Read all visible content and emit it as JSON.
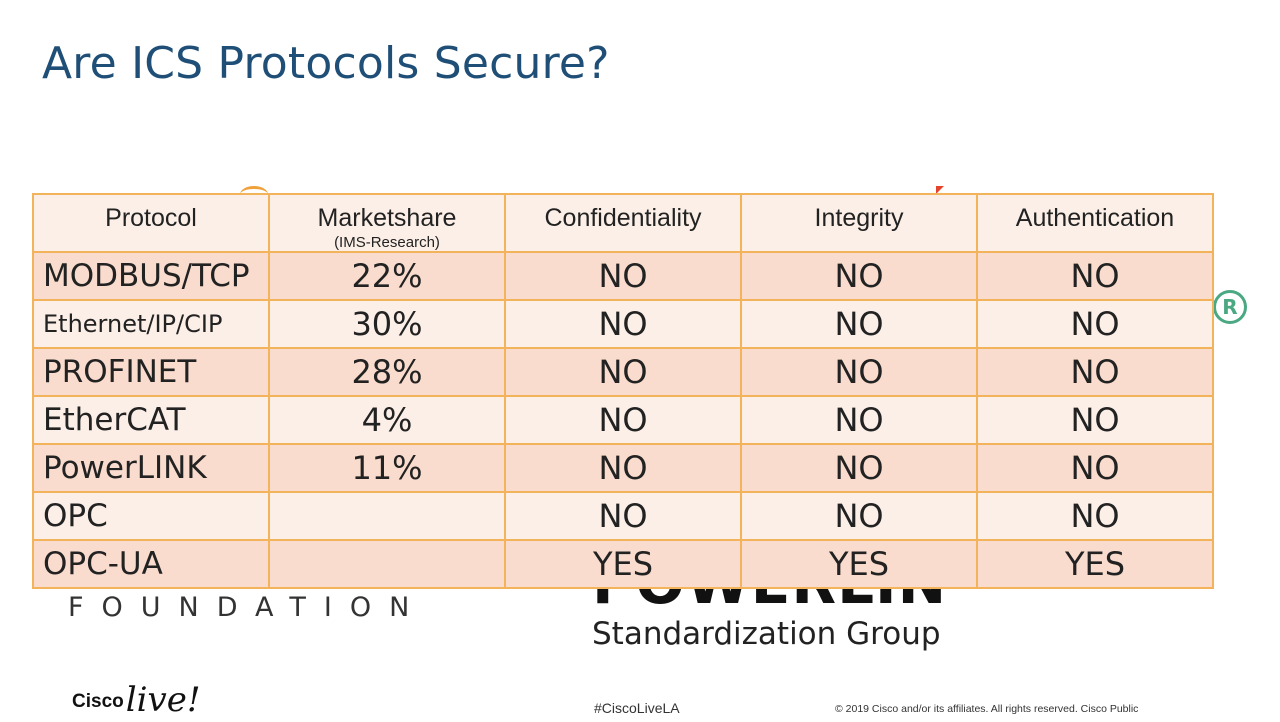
{
  "title": "Are ICS Protocols Secure?",
  "table": {
    "headers": [
      "Protocol",
      "Marketshare",
      "Confidentiality",
      "Integrity",
      "Authentication"
    ],
    "marketshare_note": "(IMS-Research)",
    "rows": [
      {
        "protocol": "MODBUS/TCP",
        "marketshare": "22%",
        "confidentiality": "NO",
        "integrity": "NO",
        "authentication": "NO"
      },
      {
        "protocol": "Ethernet/IP/CIP",
        "marketshare": "30%",
        "confidentiality": "NO",
        "integrity": "NO",
        "authentication": "NO"
      },
      {
        "protocol": "PROFINET",
        "marketshare": "28%",
        "confidentiality": "NO",
        "integrity": "NO",
        "authentication": "NO"
      },
      {
        "protocol": "EtherCAT",
        "marketshare": "4%",
        "confidentiality": "NO",
        "integrity": "NO",
        "authentication": "NO"
      },
      {
        "protocol": "PowerLINK",
        "marketshare": "11%",
        "confidentiality": "NO",
        "integrity": "NO",
        "authentication": "NO"
      },
      {
        "protocol": "OPC",
        "marketshare": "",
        "confidentiality": "NO",
        "integrity": "NO",
        "authentication": "NO"
      },
      {
        "protocol": "OPC-UA",
        "marketshare": "",
        "confidentiality": "YES",
        "integrity": "YES",
        "authentication": "YES"
      }
    ]
  },
  "background": {
    "foundation": "FOUNDATION",
    "powerlink_group": "Standardization Group",
    "registered_mark": "R"
  },
  "footer": {
    "brand_cisco": "Cisco",
    "brand_live": "live!",
    "hashtag": "#CiscoLiveLA",
    "copyright": "© 2019  Cisco and/or its affiliates. All rights reserved.   Cisco Public"
  },
  "colors": {
    "title": "#1f4f77",
    "table_border": "#f2b35b",
    "row_dark": "#f9dccd",
    "row_light": "#fcefe7"
  }
}
